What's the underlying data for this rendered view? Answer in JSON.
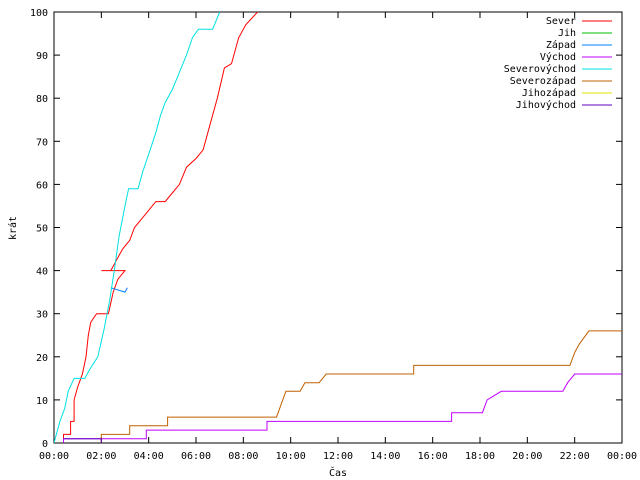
{
  "chart_data": {
    "type": "line",
    "title": "",
    "xlabel": "Čas",
    "ylabel": "krát",
    "xlim_hours": [
      0,
      24
    ],
    "ylim": [
      0,
      100
    ],
    "grid": false,
    "legend_position": "top-right",
    "x_ticks": [
      "00:00",
      "02:00",
      "04:00",
      "06:00",
      "08:00",
      "10:00",
      "12:00",
      "14:00",
      "16:00",
      "18:00",
      "20:00",
      "22:00",
      "00:00"
    ],
    "y_ticks": [
      0,
      10,
      20,
      30,
      40,
      50,
      60,
      70,
      80,
      90,
      100
    ],
    "series": [
      {
        "name": "Sever",
        "color": "#ff0000",
        "points": [
          [
            0.4,
            0
          ],
          [
            0.4,
            2
          ],
          [
            0.7,
            2
          ],
          [
            0.7,
            5
          ],
          [
            0.85,
            5
          ],
          [
            0.85,
            10
          ],
          [
            1.0,
            13
          ],
          [
            1.2,
            16
          ],
          [
            1.35,
            20
          ],
          [
            1.45,
            25
          ],
          [
            1.55,
            28
          ],
          [
            1.8,
            30
          ],
          [
            2.3,
            30
          ],
          [
            2.5,
            35
          ],
          [
            2.7,
            38
          ],
          [
            3.0,
            40
          ],
          [
            2.0,
            40
          ],
          [
            2.4,
            40
          ],
          [
            2.6,
            42
          ],
          [
            2.9,
            45
          ],
          [
            3.2,
            47
          ],
          [
            3.4,
            50
          ],
          [
            3.7,
            52
          ],
          [
            4.0,
            54
          ],
          [
            4.3,
            56
          ],
          [
            4.7,
            56
          ],
          [
            5.0,
            58
          ],
          [
            5.3,
            60
          ],
          [
            5.6,
            64
          ],
          [
            6.0,
            66
          ],
          [
            6.3,
            68
          ],
          [
            6.5,
            72
          ],
          [
            6.9,
            80
          ],
          [
            7.2,
            87
          ],
          [
            7.5,
            88
          ],
          [
            7.8,
            94
          ],
          [
            8.1,
            97
          ],
          [
            8.6,
            100
          ]
        ]
      },
      {
        "name": "Jih",
        "color": "#00c000",
        "points": []
      },
      {
        "name": "Západ",
        "color": "#0080ff",
        "points": [
          [
            2.4,
            36
          ],
          [
            3.0,
            35
          ],
          [
            3.1,
            36
          ]
        ]
      },
      {
        "name": "Východ",
        "color": "#c000ff",
        "points": [
          [
            0.4,
            0
          ],
          [
            0.4,
            1
          ],
          [
            3.9,
            1
          ],
          [
            3.9,
            3
          ],
          [
            9.0,
            3
          ],
          [
            9.0,
            5
          ],
          [
            16.8,
            5
          ],
          [
            16.8,
            7
          ],
          [
            18.1,
            7
          ],
          [
            18.3,
            10
          ],
          [
            18.9,
            12
          ],
          [
            21.5,
            12
          ],
          [
            21.7,
            14
          ],
          [
            22.0,
            16
          ],
          [
            24.0,
            16
          ]
        ]
      },
      {
        "name": "Severovýchod",
        "color": "#00e0e0",
        "points": [
          [
            0.0,
            0
          ],
          [
            0.25,
            5
          ],
          [
            0.45,
            8
          ],
          [
            0.6,
            12
          ],
          [
            0.85,
            15
          ],
          [
            1.3,
            15
          ],
          [
            1.5,
            17
          ],
          [
            1.85,
            20
          ],
          [
            2.1,
            26
          ],
          [
            2.35,
            33
          ],
          [
            2.55,
            40
          ],
          [
            2.75,
            48
          ],
          [
            3.0,
            55
          ],
          [
            3.15,
            59
          ],
          [
            3.55,
            59
          ],
          [
            3.75,
            63
          ],
          [
            4.0,
            67
          ],
          [
            4.3,
            72
          ],
          [
            4.5,
            76
          ],
          [
            4.7,
            79
          ],
          [
            5.0,
            82
          ],
          [
            5.3,
            86
          ],
          [
            5.6,
            90
          ],
          [
            5.85,
            94
          ],
          [
            6.1,
            96
          ],
          [
            6.7,
            96
          ],
          [
            7.0,
            100
          ]
        ]
      },
      {
        "name": "Severozápad",
        "color": "#c06000",
        "points": [
          [
            2.0,
            0
          ],
          [
            2.0,
            2
          ],
          [
            3.2,
            2
          ],
          [
            3.2,
            4
          ],
          [
            4.8,
            4
          ],
          [
            4.8,
            6
          ],
          [
            9.4,
            6
          ],
          [
            9.6,
            9
          ],
          [
            9.8,
            12
          ],
          [
            10.4,
            12
          ],
          [
            10.6,
            14
          ],
          [
            11.2,
            14
          ],
          [
            11.5,
            16
          ],
          [
            15.2,
            16
          ],
          [
            15.2,
            18
          ],
          [
            21.8,
            18
          ],
          [
            22.0,
            21
          ],
          [
            22.2,
            23
          ],
          [
            22.6,
            26
          ],
          [
            24.0,
            26
          ]
        ]
      },
      {
        "name": "Jihozápad",
        "color": "#e0e000",
        "points": []
      },
      {
        "name": "Jihovýchod",
        "color": "#6000c0",
        "points": [
          [
            0.4,
            1
          ],
          [
            2.0,
            1
          ],
          [
            2.0,
            0
          ]
        ]
      }
    ]
  }
}
